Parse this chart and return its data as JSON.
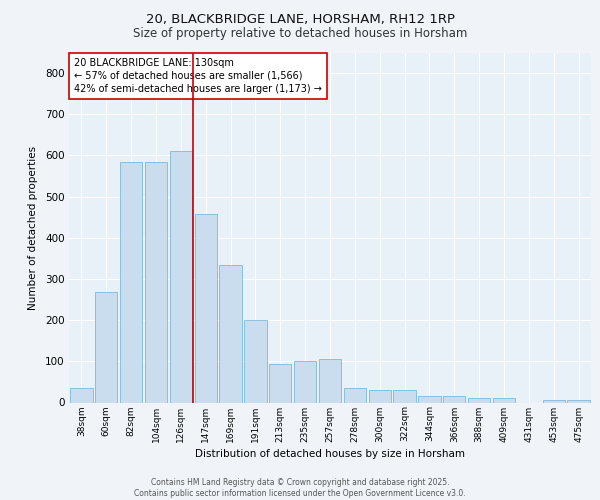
{
  "title_line1": "20, BLACKBRIDGE LANE, HORSHAM, RH12 1RP",
  "title_line2": "Size of property relative to detached houses in Horsham",
  "xlabel": "Distribution of detached houses by size in Horsham",
  "ylabel": "Number of detached properties",
  "footer_line1": "Contains HM Land Registry data © Crown copyright and database right 2025.",
  "footer_line2": "Contains public sector information licensed under the Open Government Licence v3.0.",
  "annotation_line1": "20 BLACKBRIDGE LANE: 130sqm",
  "annotation_line2": "← 57% of detached houses are smaller (1,566)",
  "annotation_line3": "42% of semi-detached houses are larger (1,173) →",
  "bar_color": "#c9ddef",
  "bar_edge_color": "#6aaed6",
  "vline_color": "#cc0000",
  "vline_x": 4.5,
  "categories": [
    "38sqm",
    "60sqm",
    "82sqm",
    "104sqm",
    "126sqm",
    "147sqm",
    "169sqm",
    "191sqm",
    "213sqm",
    "235sqm",
    "257sqm",
    "278sqm",
    "300sqm",
    "322sqm",
    "344sqm",
    "366sqm",
    "388sqm",
    "409sqm",
    "431sqm",
    "453sqm",
    "475sqm"
  ],
  "values": [
    35,
    268,
    585,
    585,
    610,
    457,
    335,
    200,
    93,
    101,
    105,
    35,
    31,
    31,
    16,
    16,
    12,
    10,
    0,
    5,
    5
  ],
  "ylim": [
    0,
    850
  ],
  "yticks": [
    0,
    100,
    200,
    300,
    400,
    500,
    600,
    700,
    800
  ],
  "background_color": "#e8f0f8",
  "fig_background_color": "#f0f4f8",
  "grid_color": "#ffffff",
  "annotation_box_facecolor": "#ffffff",
  "annotation_box_edgecolor": "#cc0000",
  "title_fontsize": 9.5,
  "subtitle_fontsize": 8.5,
  "xlabel_fontsize": 7.5,
  "ylabel_fontsize": 7.5,
  "xtick_fontsize": 6.5,
  "ytick_fontsize": 7.5,
  "annotation_fontsize": 7,
  "footer_fontsize": 5.5
}
